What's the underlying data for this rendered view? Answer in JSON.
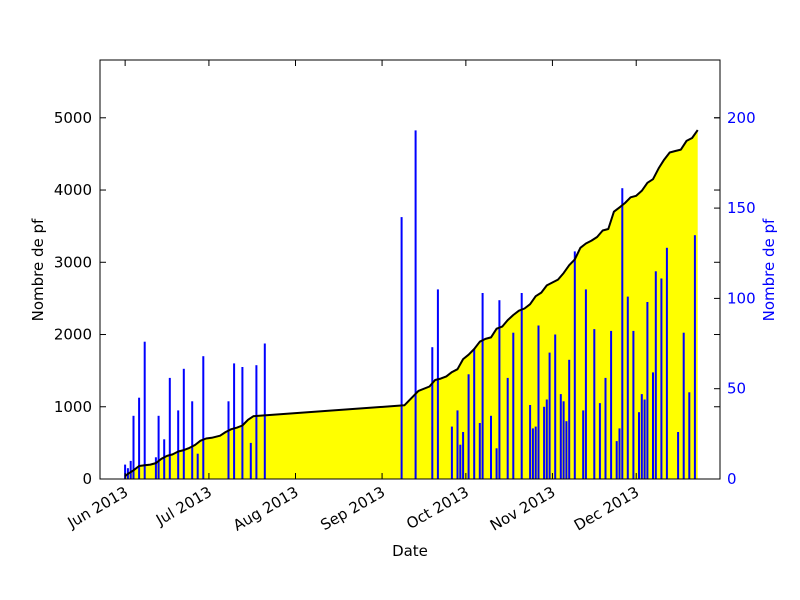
{
  "chart_data": {
    "type": "line",
    "title": "",
    "xlabel": "Date",
    "ylabel_left": "Nombre de pf",
    "ylabel_right": "Nombre de pf",
    "x_ticks": [
      {
        "date": "2013-06-01",
        "label": "Jun 2013"
      },
      {
        "date": "2013-07-01",
        "label": "Jul 2013"
      },
      {
        "date": "2013-08-01",
        "label": "Aug 2013"
      },
      {
        "date": "2013-09-01",
        "label": "Sep 2013"
      },
      {
        "date": "2013-10-01",
        "label": "Oct 2013"
      },
      {
        "date": "2013-11-01",
        "label": "Nov 2013"
      },
      {
        "date": "2013-12-01",
        "label": "Dec 2013"
      }
    ],
    "xlim": [
      "2013-05-23",
      "2013-12-31"
    ],
    "y_left": {
      "lim": [
        0,
        5800
      ],
      "ticks": [
        0,
        1000,
        2000,
        3000,
        4000,
        5000
      ]
    },
    "y_right": {
      "lim": [
        0,
        232
      ],
      "ticks": [
        0,
        50,
        100,
        150,
        200
      ]
    },
    "colors": {
      "cumulative_line": "#000000",
      "cumulative_fill": "#ffff00",
      "daily_bars": "#0000ff",
      "right_axis": "#0000ff"
    },
    "series": [
      {
        "axis": "left",
        "style": "line-fill",
        "points": [
          [
            "2013-06-01",
            40
          ],
          [
            "2013-06-02",
            70
          ],
          [
            "2013-06-04",
            120
          ],
          [
            "2013-06-06",
            180
          ],
          [
            "2013-06-08",
            190
          ],
          [
            "2013-06-10",
            200
          ],
          [
            "2013-06-12",
            220
          ],
          [
            "2013-06-14",
            280
          ],
          [
            "2013-06-16",
            320
          ],
          [
            "2013-06-18",
            340
          ],
          [
            "2013-06-20",
            380
          ],
          [
            "2013-06-22",
            400
          ],
          [
            "2013-06-24",
            430
          ],
          [
            "2013-06-26",
            470
          ],
          [
            "2013-06-28",
            530
          ],
          [
            "2013-06-30",
            560
          ],
          [
            "2013-07-02",
            570
          ],
          [
            "2013-07-05",
            600
          ],
          [
            "2013-07-07",
            650
          ],
          [
            "2013-07-09",
            690
          ],
          [
            "2013-07-11",
            710
          ],
          [
            "2013-07-13",
            740
          ],
          [
            "2013-07-15",
            820
          ],
          [
            "2013-07-17",
            870
          ],
          [
            "2013-09-09",
            1020
          ],
          [
            "2013-09-14",
            1220
          ],
          [
            "2013-09-18",
            1280
          ],
          [
            "2013-09-20",
            1370
          ],
          [
            "2013-09-22",
            1390
          ],
          [
            "2013-09-24",
            1420
          ],
          [
            "2013-09-26",
            1480
          ],
          [
            "2013-09-28",
            1520
          ],
          [
            "2013-09-30",
            1660
          ],
          [
            "2013-10-02",
            1720
          ],
          [
            "2013-10-04",
            1800
          ],
          [
            "2013-10-06",
            1900
          ],
          [
            "2013-10-08",
            1940
          ],
          [
            "2013-10-10",
            1960
          ],
          [
            "2013-10-12",
            2080
          ],
          [
            "2013-10-14",
            2110
          ],
          [
            "2013-10-16",
            2200
          ],
          [
            "2013-10-18",
            2270
          ],
          [
            "2013-10-20",
            2330
          ],
          [
            "2013-10-22",
            2360
          ],
          [
            "2013-10-24",
            2420
          ],
          [
            "2013-10-26",
            2530
          ],
          [
            "2013-10-28",
            2580
          ],
          [
            "2013-10-30",
            2680
          ],
          [
            "2013-11-01",
            2720
          ],
          [
            "2013-11-03",
            2760
          ],
          [
            "2013-11-05",
            2850
          ],
          [
            "2013-11-07",
            2960
          ],
          [
            "2013-11-09",
            3040
          ],
          [
            "2013-11-11",
            3200
          ],
          [
            "2013-11-13",
            3260
          ],
          [
            "2013-11-15",
            3300
          ],
          [
            "2013-11-17",
            3350
          ],
          [
            "2013-11-19",
            3440
          ],
          [
            "2013-11-21",
            3460
          ],
          [
            "2013-11-23",
            3700
          ],
          [
            "2013-11-25",
            3760
          ],
          [
            "2013-11-27",
            3820
          ],
          [
            "2013-11-29",
            3900
          ],
          [
            "2013-12-01",
            3920
          ],
          [
            "2013-12-03",
            3990
          ],
          [
            "2013-12-05",
            4100
          ],
          [
            "2013-12-07",
            4150
          ],
          [
            "2013-12-09",
            4300
          ],
          [
            "2013-12-11",
            4420
          ],
          [
            "2013-12-13",
            4520
          ],
          [
            "2013-12-15",
            4540
          ],
          [
            "2013-12-17",
            4560
          ],
          [
            "2013-12-19",
            4680
          ],
          [
            "2013-12-21",
            4720
          ],
          [
            "2013-12-23",
            4830
          ]
        ]
      },
      {
        "axis": "right",
        "style": "bars",
        "points": [
          [
            "2013-06-01",
            8
          ],
          [
            "2013-06-02",
            6
          ],
          [
            "2013-06-03",
            10
          ],
          [
            "2013-06-04",
            35
          ],
          [
            "2013-06-06",
            45
          ],
          [
            "2013-06-08",
            76
          ],
          [
            "2013-06-12",
            12
          ],
          [
            "2013-06-13",
            35
          ],
          [
            "2013-06-15",
            22
          ],
          [
            "2013-06-17",
            56
          ],
          [
            "2013-06-20",
            38
          ],
          [
            "2013-06-22",
            61
          ],
          [
            "2013-06-25",
            43
          ],
          [
            "2013-06-27",
            14
          ],
          [
            "2013-06-29",
            68
          ],
          [
            "2013-07-08",
            43
          ],
          [
            "2013-07-10",
            64
          ],
          [
            "2013-07-13",
            62
          ],
          [
            "2013-07-16",
            20
          ],
          [
            "2013-07-18",
            63
          ],
          [
            "2013-07-21",
            75
          ],
          [
            "2013-09-08",
            145
          ],
          [
            "2013-09-13",
            193
          ],
          [
            "2013-09-19",
            73
          ],
          [
            "2013-09-21",
            105
          ],
          [
            "2013-09-26",
            29
          ],
          [
            "2013-09-28",
            38
          ],
          [
            "2013-09-29",
            19
          ],
          [
            "2013-09-30",
            26
          ],
          [
            "2013-10-02",
            58
          ],
          [
            "2013-10-04",
            72
          ],
          [
            "2013-10-06",
            31
          ],
          [
            "2013-10-07",
            103
          ],
          [
            "2013-10-10",
            35
          ],
          [
            "2013-10-12",
            17
          ],
          [
            "2013-10-13",
            99
          ],
          [
            "2013-10-16",
            56
          ],
          [
            "2013-10-18",
            81
          ],
          [
            "2013-10-21",
            103
          ],
          [
            "2013-10-24",
            41
          ],
          [
            "2013-10-25",
            28
          ],
          [
            "2013-10-26",
            29
          ],
          [
            "2013-10-27",
            85
          ],
          [
            "2013-10-29",
            40
          ],
          [
            "2013-10-30",
            44
          ],
          [
            "2013-10-31",
            70
          ],
          [
            "2013-11-02",
            80
          ],
          [
            "2013-11-04",
            47
          ],
          [
            "2013-11-05",
            43
          ],
          [
            "2013-11-06",
            32
          ],
          [
            "2013-11-07",
            66
          ],
          [
            "2013-11-09",
            126
          ],
          [
            "2013-11-12",
            38
          ],
          [
            "2013-11-13",
            105
          ],
          [
            "2013-11-16",
            83
          ],
          [
            "2013-11-18",
            42
          ],
          [
            "2013-11-20",
            56
          ],
          [
            "2013-11-22",
            82
          ],
          [
            "2013-11-24",
            21
          ],
          [
            "2013-11-25",
            28
          ],
          [
            "2013-11-26",
            161
          ],
          [
            "2013-11-28",
            101
          ],
          [
            "2013-11-30",
            82
          ],
          [
            "2013-12-02",
            37
          ],
          [
            "2013-12-03",
            47
          ],
          [
            "2013-12-04",
            44
          ],
          [
            "2013-12-05",
            98
          ],
          [
            "2013-12-07",
            59
          ],
          [
            "2013-12-08",
            115
          ],
          [
            "2013-12-10",
            111
          ],
          [
            "2013-12-12",
            128
          ],
          [
            "2013-12-16",
            26
          ],
          [
            "2013-12-18",
            81
          ],
          [
            "2013-12-20",
            48
          ],
          [
            "2013-12-22",
            135
          ]
        ]
      }
    ]
  }
}
